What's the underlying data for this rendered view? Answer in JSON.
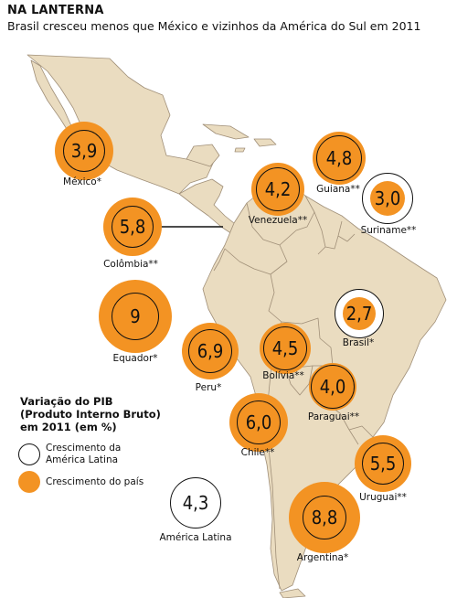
{
  "header": {
    "title": "NA LANTERNA",
    "subtitle": "Brasil cresceu menos que México e vizinhos da América do Sul em 2011"
  },
  "colors": {
    "land": "#eadcc0",
    "border": "#a08f78",
    "country_growth": "#f39323",
    "latin_america_ring": "#000000",
    "background": "#ffffff"
  },
  "legend": {
    "title_lines": [
      "Variação do PIB",
      "(Produto Interno Bruto)",
      "em 2011 (em %)"
    ],
    "items": [
      {
        "label_lines": [
          "Crescimento da",
          "América Latina"
        ],
        "style": "ring"
      },
      {
        "label_lines": [
          "Crescimento do país"
        ],
        "style": "fill"
      }
    ]
  },
  "countries": [
    {
      "name": "México*",
      "value": "3,9"
    },
    {
      "name": "Venezuela**",
      "value": "4,2"
    },
    {
      "name": "Guiana**",
      "value": "4,8"
    },
    {
      "name": "Suriname**",
      "value": "3,0"
    },
    {
      "name": "Colômbia**",
      "value": "5,8"
    },
    {
      "name": "Equador*",
      "value": "9"
    },
    {
      "name": "Brasil*",
      "value": "2,7"
    },
    {
      "name": "Peru*",
      "value": "6,9"
    },
    {
      "name": "Bolívia**",
      "value": "4,5"
    },
    {
      "name": "Paraguai**",
      "value": "4,0"
    },
    {
      "name": "Chile**",
      "value": "6,0"
    },
    {
      "name": "Uruguai**",
      "value": "5,5"
    },
    {
      "name": "Argentina*",
      "value": "8,8"
    }
  ],
  "latin_america": {
    "name": "América Latina",
    "value": "4,3"
  }
}
